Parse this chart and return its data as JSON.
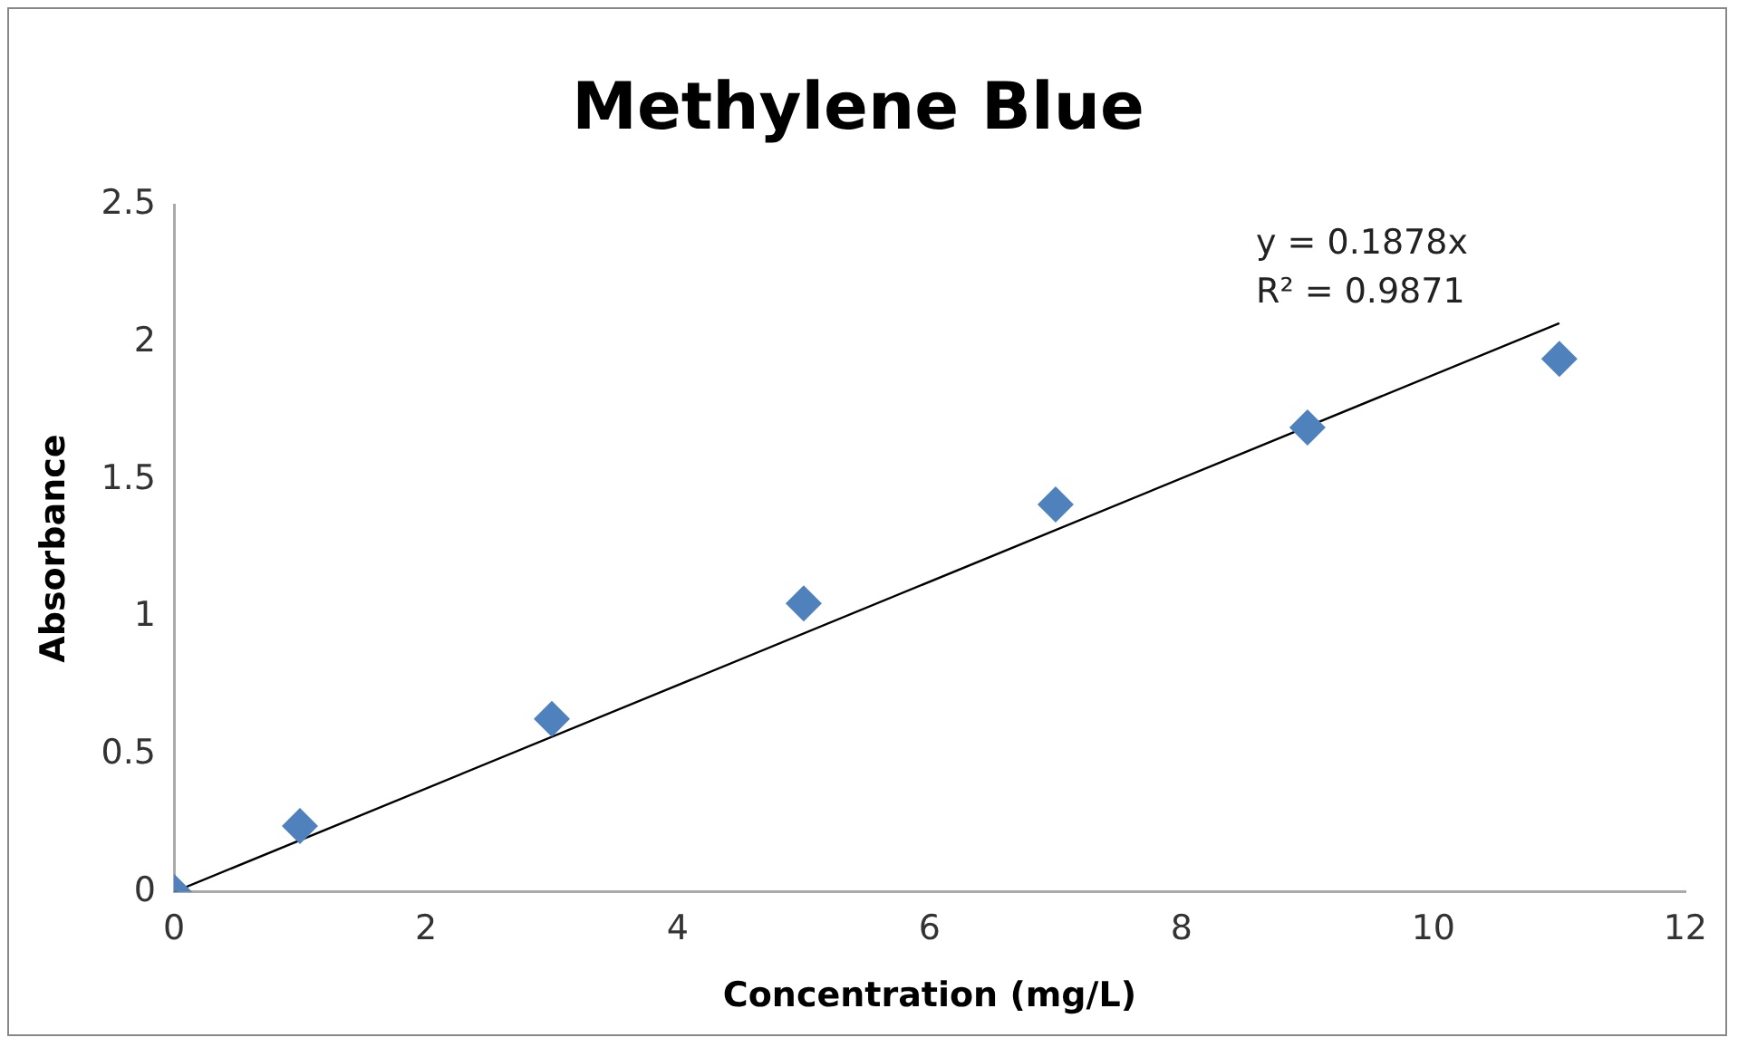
{
  "chart_data": {
    "type": "scatter",
    "title": "Methylene Blue",
    "xlabel": "Concentration (mg/L)",
    "ylabel": "Absorbance",
    "x": [
      0,
      1,
      3,
      5,
      7,
      9,
      11
    ],
    "series": [
      {
        "color": "#4f81bd",
        "marker": "diamond",
        "values": [
          0,
          0.24,
          0.63,
          1.05,
          1.41,
          1.69,
          1.94
        ]
      },
      {
        "type": "line",
        "color": "#000000",
        "marker": "none",
        "x": [
          0,
          11
        ],
        "values": [
          0,
          2.07
        ]
      }
    ],
    "annotations": [
      "y = 0.1878x",
      "R² = 0.9871"
    ],
    "xlim": [
      0,
      12
    ],
    "xticks": [
      0,
      2,
      4,
      6,
      8,
      10,
      12
    ],
    "ylim": [
      0,
      2.5
    ],
    "yticks": [
      0,
      0.5,
      1,
      1.5,
      2,
      2.5
    ],
    "grid": false,
    "legend": false
  }
}
